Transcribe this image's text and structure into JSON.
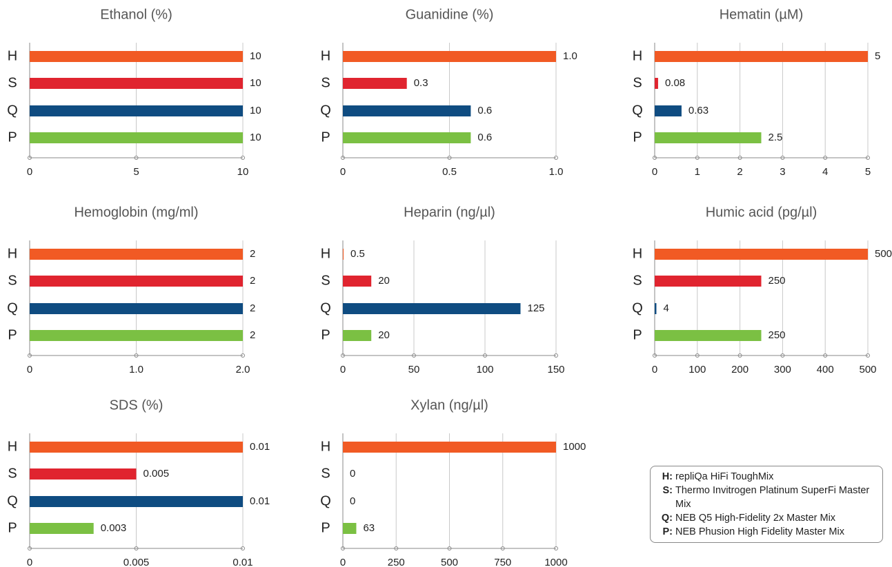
{
  "chart_data": [
    {
      "type": "bar",
      "title": "Ethanol (%)",
      "categories": [
        "H",
        "S",
        "Q",
        "P"
      ],
      "values": [
        10,
        10,
        10,
        10
      ],
      "colors": [
        "#f15a24",
        "#e0242f",
        "#0f4c81",
        "#7bc043"
      ],
      "xlim": [
        0,
        10
      ],
      "xticks": [
        0,
        5,
        10
      ],
      "grid": true
    },
    {
      "type": "bar",
      "title": "Guanidine (%)",
      "categories": [
        "H",
        "S",
        "Q",
        "P"
      ],
      "values": [
        1,
        0.3,
        0.6,
        0.6
      ],
      "value_labels": [
        "1.0",
        "0.3",
        "0.6",
        "0.6"
      ],
      "colors": [
        "#f15a24",
        "#e0242f",
        "#0f4c81",
        "#7bc043"
      ],
      "xlim": [
        0,
        1
      ],
      "xticks": [
        0,
        0.5,
        {
          "value": 1,
          "label": "1.0"
        }
      ],
      "grid": true
    },
    {
      "type": "bar",
      "title": "Hematin (µM)",
      "categories": [
        "H",
        "S",
        "Q",
        "P"
      ],
      "values": [
        5,
        0.08,
        0.63,
        2.5
      ],
      "colors": [
        "#f15a24",
        "#e0242f",
        "#0f4c81",
        "#7bc043"
      ],
      "xlim": [
        0,
        5
      ],
      "xticks": [
        0,
        1,
        2,
        3,
        4,
        5
      ],
      "grid": true
    },
    {
      "type": "bar",
      "title": "Hemoglobin (mg/ml)",
      "categories": [
        "H",
        "S",
        "Q",
        "P"
      ],
      "values": [
        2,
        2,
        2,
        2
      ],
      "colors": [
        "#f15a24",
        "#e0242f",
        "#0f4c81",
        "#7bc043"
      ],
      "xlim": [
        0,
        2
      ],
      "xticks": [
        0,
        {
          "value": 1,
          "label": "1.0"
        },
        {
          "value": 2,
          "label": "2.0"
        }
      ],
      "grid": true
    },
    {
      "type": "bar",
      "title": "Heparin (ng/µl)",
      "categories": [
        "H",
        "S",
        "Q",
        "P"
      ],
      "values": [
        0.5,
        20,
        125,
        20
      ],
      "colors": [
        "#f15a24",
        "#e0242f",
        "#0f4c81",
        "#7bc043"
      ],
      "xlim": [
        0,
        150
      ],
      "xticks": [
        0,
        50,
        100,
        150
      ],
      "grid": true
    },
    {
      "type": "bar",
      "title": "Humic acid (pg/µl)",
      "categories": [
        "H",
        "S",
        "Q",
        "P"
      ],
      "values": [
        500,
        250,
        4,
        250
      ],
      "colors": [
        "#f15a24",
        "#e0242f",
        "#0f4c81",
        "#7bc043"
      ],
      "xlim": [
        0,
        500
      ],
      "xticks": [
        0,
        100,
        200,
        300,
        400,
        500
      ],
      "grid": true
    },
    {
      "type": "bar",
      "title": "SDS (%)",
      "categories": [
        "H",
        "S",
        "Q",
        "P"
      ],
      "values": [
        0.01,
        0.005,
        0.01,
        0.003
      ],
      "colors": [
        "#f15a24",
        "#e0242f",
        "#0f4c81",
        "#7bc043"
      ],
      "xlim": [
        0,
        0.01
      ],
      "xticks": [
        0,
        0.005,
        0.01
      ],
      "grid": true
    },
    {
      "type": "bar",
      "title": "Xylan (ng/µl)",
      "categories": [
        "H",
        "S",
        "Q",
        "P"
      ],
      "values": [
        1000,
        0,
        0,
        63
      ],
      "colors": [
        "#f15a24",
        "#e0242f",
        "#0f4c81",
        "#7bc043"
      ],
      "xlim": [
        0,
        1000
      ],
      "xticks": [
        0,
        250,
        500,
        750,
        1000
      ],
      "grid": true
    }
  ],
  "legend": [
    {
      "key": "H:",
      "label": "repliQa HiFi ToughMix"
    },
    {
      "key": "S:",
      "label": "Thermo Invitrogen Platinum SuperFi Master Mix"
    },
    {
      "key": "Q:",
      "label": "NEB Q5 High-Fidelity 2x Master Mix"
    },
    {
      "key": "P:",
      "label": "NEB Phusion High Fidelity Master Mix"
    }
  ]
}
